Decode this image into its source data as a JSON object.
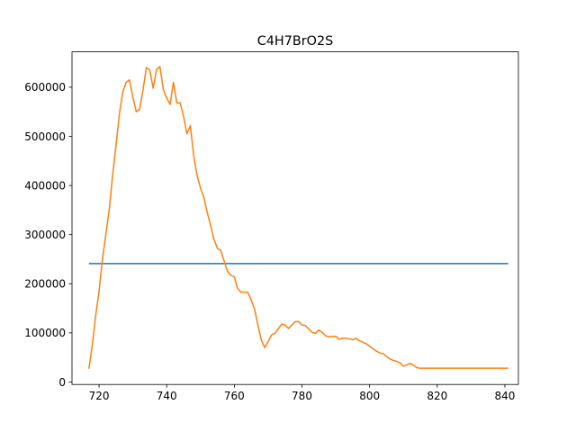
{
  "chart_data": {
    "type": "line",
    "title": "C4H7BrO2S",
    "xlabel": "",
    "ylabel": "",
    "xlim": [
      712,
      844
    ],
    "ylim": [
      -5000,
      672000
    ],
    "x_ticks": [
      720,
      740,
      760,
      780,
      800,
      820,
      840
    ],
    "x_tick_labels": [
      "720",
      "740",
      "760",
      "780",
      "800",
      "820",
      "840"
    ],
    "y_ticks": [
      0,
      100000,
      200000,
      300000,
      400000,
      500000,
      600000
    ],
    "y_tick_labels": [
      "0",
      "100000",
      "200000",
      "300000",
      "400000",
      "500000",
      "600000"
    ],
    "grid": false,
    "series": [
      {
        "color": "#1f77b4",
        "x": [
          717,
          841
        ],
        "y": [
          241000,
          241000
        ]
      },
      {
        "color": "#ff7f0e",
        "x": [
          717,
          718,
          719,
          720,
          721,
          722,
          723,
          724,
          725,
          726,
          727,
          728,
          729,
          730,
          731,
          732,
          733,
          734,
          735,
          736,
          737,
          738,
          739,
          740,
          741,
          742,
          743,
          744,
          745,
          746,
          747,
          748,
          749,
          750,
          751,
          752,
          753,
          754,
          755,
          756,
          757,
          758,
          759,
          760,
          761,
          762,
          763,
          764,
          765,
          766,
          767,
          768,
          769,
          770,
          771,
          772,
          773,
          774,
          775,
          776,
          777,
          778,
          779,
          780,
          781,
          782,
          783,
          784,
          785,
          786,
          787,
          788,
          789,
          790,
          791,
          792,
          793,
          794,
          795,
          796,
          797,
          798,
          799,
          800,
          801,
          802,
          803,
          804,
          805,
          806,
          807,
          808,
          809,
          810,
          811,
          812,
          813,
          814,
          815,
          816,
          817,
          818,
          819,
          820,
          821,
          822,
          823,
          824,
          825,
          826,
          827,
          828,
          829,
          830,
          831,
          832,
          833,
          834,
          835,
          836,
          837,
          838,
          839,
          840,
          841
        ],
        "y": [
          27000,
          75000,
          135000,
          185000,
          250000,
          300000,
          350000,
          420000,
          480000,
          545000,
          590000,
          610000,
          615000,
          580000,
          550000,
          555000,
          595000,
          640000,
          635000,
          598000,
          636000,
          642000,
          596000,
          578000,
          565000,
          610000,
          568000,
          568000,
          540000,
          505000,
          522000,
          460000,
          420000,
          395000,
          375000,
          345000,
          318000,
          290000,
          272000,
          268000,
          246000,
          225000,
          217000,
          214000,
          190000,
          183000,
          183000,
          182000,
          167000,
          148000,
          115000,
          85000,
          70000,
          82000,
          96000,
          99000,
          108000,
          118000,
          116000,
          109000,
          116000,
          123000,
          123000,
          116000,
          115000,
          108000,
          101000,
          99000,
          106000,
          101000,
          94000,
          92000,
          93000,
          93000,
          87000,
          89000,
          89000,
          88000,
          86000,
          89000,
          84000,
          81000,
          78000,
          73000,
          68000,
          63000,
          59000,
          58000,
          52000,
          47000,
          44000,
          42000,
          39000,
          32000,
          35000,
          38000,
          34000,
          29000,
          28000,
          28000,
          28000,
          28000,
          28000,
          28000,
          28000,
          28000,
          28000,
          28000,
          28000,
          28000,
          28000,
          28000,
          28000,
          28000,
          28000,
          28000,
          28000,
          28000,
          28000,
          28000,
          28000,
          28000,
          28000,
          28000,
          28000
        ]
      }
    ]
  }
}
